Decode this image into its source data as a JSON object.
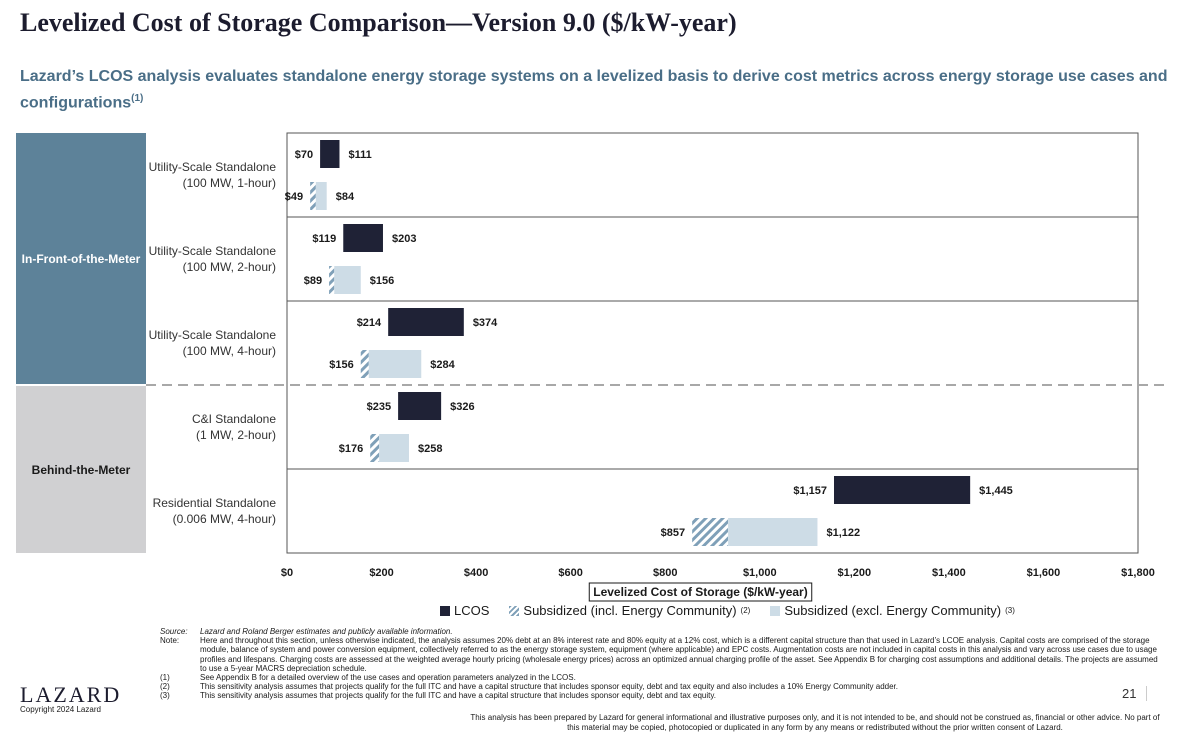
{
  "title": "Levelized Cost of Storage Comparison—Version 9.0 ($/kW-year)",
  "subtitle": "Lazard’s LCOS analysis evaluates standalone energy storage systems on a levelized basis to derive cost metrics across energy storage use cases and configurations",
  "subtitle_sup": "(1)",
  "bands": {
    "ifm": "In-Front-of-the-Meter",
    "btm": "Behind-the-Meter"
  },
  "colors": {
    "lcos": "#1f2236",
    "subsidized_incl": "#7fa0b8",
    "subsidized_excl": "#cddce6",
    "ifm_band": "#5d8299",
    "btm_band": "#d0d0d2"
  },
  "chart_data": {
    "type": "bar",
    "orientation": "horizontal floating range",
    "xlabel": "Levelized Cost of Storage ($/kW-year)",
    "xlim": [
      0,
      1800
    ],
    "ticks": [
      "$0",
      "$200",
      "$400",
      "$600",
      "$800",
      "$1,000",
      "$1,200",
      "$1,400",
      "$1,600",
      "$1,800"
    ],
    "legend_position": "bottom",
    "categories": [
      {
        "name": "Utility-Scale Standalone",
        "spec": "(100 MW, 1-hour)",
        "band": "In-Front-of-the-Meter",
        "lcos": {
          "low": 70,
          "high": 111,
          "low_label": "$70",
          "high_label": "$111"
        },
        "subsidized": {
          "low": 49,
          "mid": 61,
          "high": 84,
          "low_label": "$49",
          "high_label": "$84"
        }
      },
      {
        "name": "Utility-Scale Standalone",
        "spec": "(100 MW, 2-hour)",
        "band": "In-Front-of-the-Meter",
        "lcos": {
          "low": 119,
          "high": 203,
          "low_label": "$119",
          "high_label": "$203"
        },
        "subsidized": {
          "low": 89,
          "mid": 100,
          "high": 156,
          "low_label": "$89",
          "high_label": "$156"
        }
      },
      {
        "name": "Utility-Scale Standalone",
        "spec": "(100 MW, 4-hour)",
        "band": "In-Front-of-the-Meter",
        "lcos": {
          "low": 214,
          "high": 374,
          "low_label": "$214",
          "high_label": "$374"
        },
        "subsidized": {
          "low": 156,
          "mid": 173,
          "high": 284,
          "low_label": "$156",
          "high_label": "$284"
        }
      },
      {
        "name": "C&I Standalone",
        "spec": "(1 MW, 2-hour)",
        "band": "Behind-the-Meter",
        "lcos": {
          "low": 235,
          "high": 326,
          "low_label": "$235",
          "high_label": "$326"
        },
        "subsidized": {
          "low": 176,
          "mid": 195,
          "high": 258,
          "low_label": "$176",
          "high_label": "$258"
        }
      },
      {
        "name": "Residential Standalone",
        "spec": "(0.006 MW, 4-hour)",
        "band": "Behind-the-Meter",
        "lcos": {
          "low": 1157,
          "high": 1445,
          "low_label": "$1,157",
          "high_label": "$1,445"
        },
        "subsidized": {
          "low": 857,
          "mid": 933,
          "high": 1122,
          "low_label": "$857",
          "high_label": "$1,122"
        }
      }
    ],
    "series": [
      {
        "name": "LCOS",
        "sup": ""
      },
      {
        "name": "Subsidized (incl. Energy Community)",
        "sup": "(2)"
      },
      {
        "name": "Subsidized (excl. Energy Community)",
        "sup": "(3)"
      }
    ]
  },
  "notes": [
    {
      "k": "Source:",
      "t": "Lazard and Roland Berger estimates and publicly available information.",
      "italic": true
    },
    {
      "k": "Note:",
      "t": "Here and throughout this section, unless otherwise indicated, the analysis assumes 20% debt at an 8% interest rate and 80% equity at a 12% cost, which is a different capital structure than that used in Lazard’s LCOE analysis. Capital costs are comprised of the storage module, balance of system and power conversion equipment, collectively referred to as the energy storage system, equipment (where applicable) and EPC costs. Augmentation costs are not included in capital costs in this analysis and vary across use cases due to usage profiles and lifespans. Charging costs are assessed at the weighted average hourly pricing (wholesale energy prices) across an optimized annual charging profile of the asset. See Appendix B for charging cost assumptions and additional details. The projects are assumed to use a 5-year MACRS depreciation schedule.",
      "italic": false
    },
    {
      "k": "(1)",
      "t": "See Appendix B for a detailed overview of the use cases and operation parameters analyzed in the LCOS.",
      "italic": false
    },
    {
      "k": "(2)",
      "t": "This sensitivity analysis assumes that projects qualify for the full ITC and have a capital structure that includes sponsor equity, debt and tax equity and also includes a 10% Energy Community adder.",
      "italic": false
    },
    {
      "k": "(3)",
      "t": "This sensitivity analysis assumes that projects qualify for the full ITC and have a capital structure that includes sponsor equity, debt and tax equity.",
      "italic": false
    }
  ],
  "footer": {
    "logo": "LAZARD",
    "copyright": "Copyright 2024 Lazard",
    "page": "21",
    "disclaimer": "This analysis has been prepared by Lazard for general informational and illustrative purposes only, and it is not intended to be, and should not be construed as, financial or other advice. No part of this material may be copied, photocopied or duplicated in any form by any means or redistributed without the prior written consent of Lazard."
  }
}
